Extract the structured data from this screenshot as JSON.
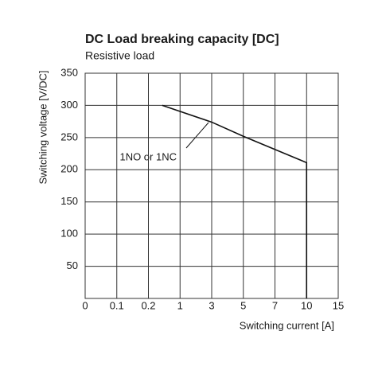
{
  "chart_data": {
    "type": "line",
    "title": "DC Load breaking capacity [DC]",
    "subtitle": "Resistive load",
    "x_label": "Switching current [A]",
    "y_label": "Switching voltage [V/DC]",
    "annotation": "1NO or 1NC",
    "xlim": [
      0,
      15
    ],
    "ylim": [
      0,
      350
    ],
    "xticks": [
      0,
      0.1,
      0.2,
      1,
      3,
      5,
      7,
      10,
      15
    ],
    "yticks": [
      50,
      100,
      150,
      200,
      250,
      300,
      350
    ],
    "grid": true,
    "series": [
      {
        "name": "1NO or 1NC",
        "color": "#111111",
        "x": [
          0.55,
          3,
          5,
          10,
          10
        ],
        "values": [
          300,
          274,
          252,
          211,
          0
        ]
      }
    ]
  }
}
